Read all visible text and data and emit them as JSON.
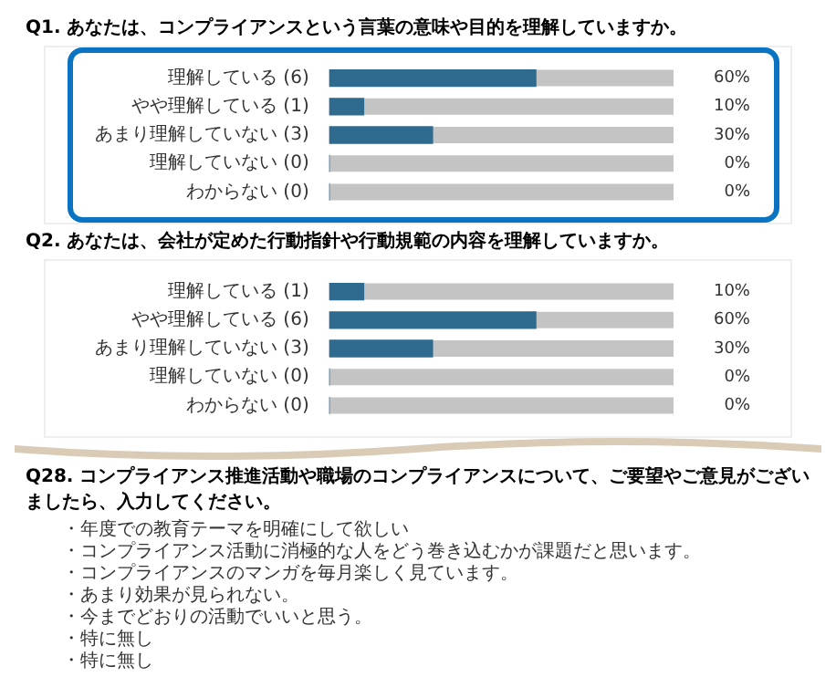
{
  "chart_data": [
    {
      "type": "bar",
      "orientation": "horizontal",
      "title": "Q1. あなたは、コンプライアンスという言葉の意味や目的を理解していますか。",
      "categories": [
        "理解している (6)",
        "やや理解している (1)",
        "あまり理解していない (3)",
        "理解していない (0)",
        "わからない (0)"
      ],
      "values": [
        60,
        10,
        30,
        0,
        0
      ],
      "value_labels": [
        "60%",
        "10%",
        "30%",
        "0%",
        "0%"
      ],
      "color": "#2f6a8f",
      "xlim": [
        0,
        100
      ],
      "tick_labels": "y",
      "grid": false,
      "legend": false
    },
    {
      "type": "bar",
      "orientation": "horizontal",
      "title": "Q2. あなたは、会社が定めた行動指針や行動規範の内容を理解していますか。",
      "categories": [
        "理解している (1)",
        "やや理解している (6)",
        "あまり理解していない (3)",
        "理解していない (0)",
        "わからない (0)"
      ],
      "values": [
        10,
        60,
        30,
        0,
        0
      ],
      "value_labels": [
        "10%",
        "60%",
        "30%",
        "0%",
        "0%"
      ],
      "color": "#2f6a8f",
      "xlim": [
        0,
        100
      ],
      "tick_labels": "y",
      "grid": false,
      "legend": false
    },
    {
      "type": "other",
      "title": "Q28. コンプライアンス推進活動や職場のコンプライアンスについて、ご要望やご意見がございましたら、入力してください。",
      "annotations": [
        "・年度での教育テーマを明確にして欲しい",
        "・コンプライアンス活動に消極的な人をどう巻き込むかが課題だと思います。",
        "・コンプライアンスのマンガを毎月楽しく見ています。",
        "・あまり効果が見られない。",
        "・今までどおりの活動でいいと思う。",
        "・特に無し",
        "・特に無し"
      ]
    }
  ]
}
